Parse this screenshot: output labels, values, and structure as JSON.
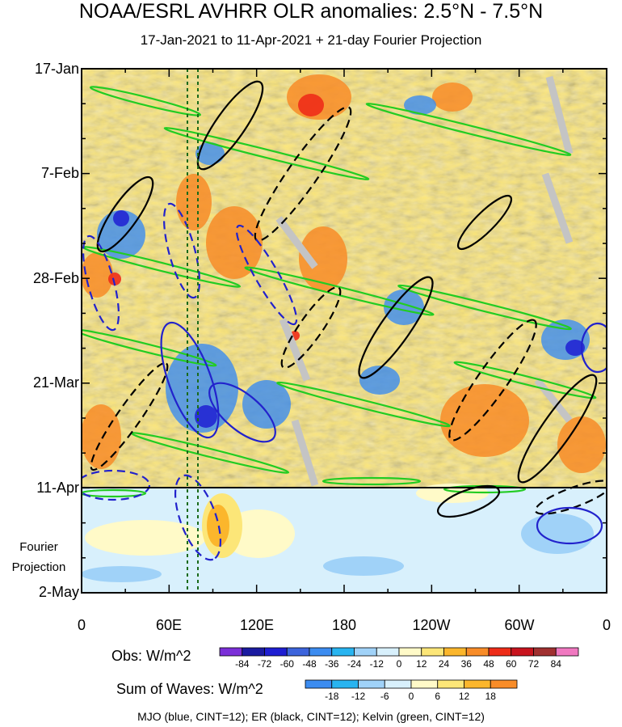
{
  "title": "NOAA/ESRL AVHRR OLR anomalies: 2.5°N - 7.5°N",
  "subtitle": "17-Jan-2021 to 11-Apr-2021 + 21-day Fourier Projection",
  "y_labels": [
    "17-Jan",
    "7-Feb",
    "28-Feb",
    "21-Mar",
    "11-Apr",
    "2-May"
  ],
  "projection_label": [
    "Fourier",
    "Projection"
  ],
  "x_labels": [
    "0",
    "60E",
    "120E",
    "180",
    "120W",
    "60W",
    "0"
  ],
  "obs_colorbar": {
    "label": "Obs: W/m^2",
    "ticks": [
      "-84",
      "-72",
      "-60",
      "-48",
      "-36",
      "-24",
      "-12",
      "0",
      "12",
      "24",
      "36",
      "48",
      "60",
      "72",
      "84"
    ],
    "colors": [
      "#7b2fd8",
      "#1a1aa0",
      "#1e1ed2",
      "#3c64dc",
      "#3c8cf0",
      "#28b4f0",
      "#a0d2f8",
      "#d8f0fc",
      "#fffac8",
      "#fce678",
      "#fbb62c",
      "#f88c28",
      "#ee2c18",
      "#c8141e",
      "#a03030",
      "#f078c0"
    ]
  },
  "waves_colorbar": {
    "label": "Sum of Waves: W/m^2",
    "ticks": [
      "-18",
      "-12",
      "-6",
      "0",
      "6",
      "12",
      "18"
    ],
    "colors": [
      "#3c8cf0",
      "#28b4f0",
      "#a0d2f8",
      "#d8f0fc",
      "#fffac8",
      "#fce678",
      "#fbb62c",
      "#f88c28"
    ]
  },
  "footer": "MJO (blue, CINT=12); ER (black, CINT=12); Kelvin (green, CINT=12)",
  "chart_data": {
    "type": "heatmap",
    "title": "NOAA/ESRL AVHRR OLR anomalies: 2.5°N - 7.5°N",
    "subtitle": "17-Jan-2021 to 11-Apr-2021 + 21-day Fourier Projection",
    "x_axis": {
      "ticks": [
        "0",
        "60E",
        "120E",
        "180",
        "120W",
        "60W",
        "0"
      ],
      "longitude_range": [
        0,
        360
      ]
    },
    "y_axis": {
      "ticks": [
        "17-Jan",
        "7-Feb",
        "28-Feb",
        "21-Mar",
        "11-Apr",
        "2-May"
      ],
      "range": [
        "2021-01-17",
        "2021-05-02"
      ],
      "orientation": "time increasing downward"
    },
    "observation_end": "2021-04-11",
    "projection_days": 21,
    "obs_levels": [
      -84,
      -72,
      -60,
      -48,
      -36,
      -24,
      -12,
      0,
      12,
      24,
      36,
      48,
      60,
      72,
      84
    ],
    "waves_levels": [
      -18,
      -12,
      -6,
      0,
      6,
      12,
      18
    ],
    "contours": [
      {
        "name": "MJO",
        "color": "blue",
        "cint": 12
      },
      {
        "name": "ER",
        "color": "black",
        "cint": 12
      },
      {
        "name": "Kelvin",
        "color": "green",
        "cint": 12
      }
    ],
    "reference_lines_longitude": [
      72,
      80
    ]
  }
}
